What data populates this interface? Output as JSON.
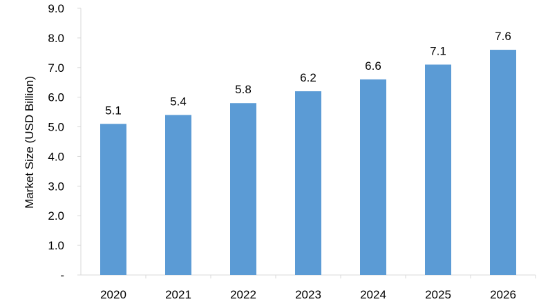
{
  "chart_data": {
    "type": "bar",
    "title": "",
    "xlabel": "",
    "ylabel": "Market Size (USD Billion)",
    "categories": [
      "2020",
      "2021",
      "2022",
      "2023",
      "2024",
      "2025",
      "2026"
    ],
    "values": [
      5.1,
      5.4,
      5.8,
      6.2,
      6.6,
      7.1,
      7.6
    ],
    "data_labels": [
      "5.1",
      "5.4",
      "5.8",
      "6.2",
      "6.6",
      "7.1",
      "7.6"
    ],
    "y_ticks": [
      {
        "value": 0,
        "label": "-"
      },
      {
        "value": 1,
        "label": "1.0"
      },
      {
        "value": 2,
        "label": "2.0"
      },
      {
        "value": 3,
        "label": "3.0"
      },
      {
        "value": 4,
        "label": "4.0"
      },
      {
        "value": 5,
        "label": "5.0"
      },
      {
        "value": 6,
        "label": "6.0"
      },
      {
        "value": 7,
        "label": "7.0"
      },
      {
        "value": 8,
        "label": "8.0"
      },
      {
        "value": 9,
        "label": "9.0"
      }
    ],
    "ylim": [
      0,
      9
    ],
    "grid": false,
    "legend": "none",
    "colors": {
      "bar": "#5B9BD5",
      "axis": "#D9D9D9"
    }
  }
}
